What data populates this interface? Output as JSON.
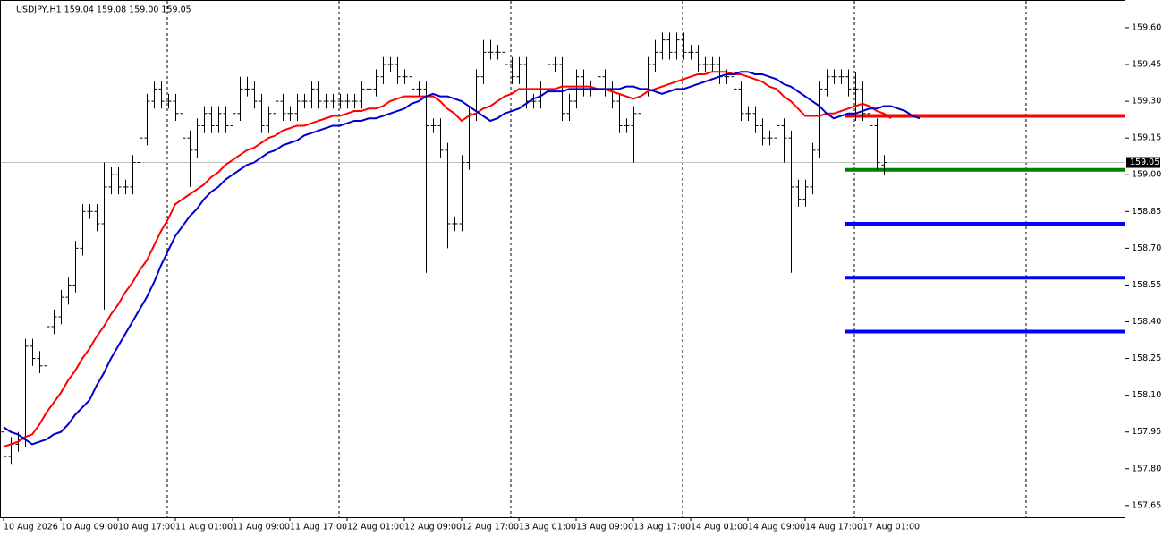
{
  "chart_data": {
    "type": "ohlc",
    "title": "USDJPY,H1  159.04 159.08 159.00 159.05",
    "color": "#000000",
    "categories": [
      "10 Aug 2026",
      null,
      null,
      null,
      null,
      null,
      null,
      null,
      "10 Aug 09:00",
      null,
      null,
      null,
      null,
      null,
      null,
      null,
      "10 Aug 17:00",
      null,
      null,
      null,
      null,
      null,
      null,
      null,
      "11 Aug 01:00",
      null,
      null,
      null,
      null,
      null,
      null,
      null,
      "11 Aug 09:00",
      null,
      null,
      null,
      null,
      null,
      null,
      null,
      "11 Aug 17:00",
      null,
      null,
      null,
      null,
      null,
      null,
      null,
      "12 Aug 01:00",
      null,
      null,
      null,
      null,
      null,
      null,
      null,
      "12 Aug 09:00",
      null,
      null,
      null,
      null,
      null,
      null,
      null,
      "12 Aug 17:00",
      null,
      null,
      null,
      null,
      null,
      null,
      null,
      "13 Aug 01:00",
      null,
      null,
      null,
      null,
      null,
      null,
      null,
      "13 Aug 09:00",
      null,
      null,
      null,
      null,
      null,
      null,
      null,
      "13 Aug 17:00",
      null,
      null,
      null,
      null,
      null,
      null,
      null,
      "14 Aug 01:00",
      null,
      null,
      null,
      null,
      null,
      null,
      null,
      "14 Aug 09:00",
      null,
      null,
      null,
      null,
      null,
      null,
      null,
      "14 Aug 17:00",
      null,
      null,
      null,
      null,
      null,
      null,
      null,
      "17 Aug 01:00",
      null,
      null,
      null,
      null,
      null,
      null,
      null,
      null
    ],
    "open": [
      157.95,
      157.85,
      157.9,
      157.92,
      158.3,
      158.25,
      158.22,
      158.38,
      158.42,
      158.5,
      158.55,
      158.7,
      158.85,
      158.85,
      158.8,
      158.95,
      159.0,
      158.95,
      158.95,
      159.05,
      159.15,
      159.3,
      159.35,
      159.3,
      159.3,
      159.25,
      159.15,
      159.1,
      159.2,
      159.25,
      159.2,
      159.25,
      159.2,
      159.25,
      159.35,
      159.35,
      159.3,
      159.2,
      159.25,
      159.3,
      159.25,
      159.25,
      159.3,
      159.3,
      159.35,
      159.3,
      159.3,
      159.3,
      159.3,
      159.3,
      159.3,
      159.35,
      159.35,
      159.4,
      159.45,
      159.45,
      159.4,
      159.4,
      159.35,
      159.35,
      159.2,
      159.2,
      159.1,
      158.8,
      158.8,
      159.05,
      159.25,
      159.4,
      159.5,
      159.5,
      159.5,
      159.45,
      159.4,
      159.45,
      159.3,
      159.3,
      159.35,
      159.45,
      159.45,
      159.25,
      159.3,
      159.4,
      159.35,
      159.35,
      159.4,
      159.35,
      159.3,
      159.2,
      159.2,
      159.25,
      159.35,
      159.45,
      159.5,
      159.55,
      159.5,
      159.55,
      159.5,
      159.5,
      159.45,
      159.45,
      159.45,
      159.4,
      159.4,
      159.35,
      159.25,
      159.25,
      159.2,
      159.15,
      159.15,
      159.2,
      159.15,
      158.95,
      158.9,
      158.95,
      159.1,
      159.35,
      159.4,
      159.4,
      159.4,
      159.35,
      159.35,
      159.25,
      159.2,
      159.04,
      null,
      null,
      null,
      null,
      null
    ],
    "high": [
      157.98,
      157.93,
      157.95,
      158.33,
      158.33,
      158.28,
      158.41,
      158.45,
      158.53,
      158.58,
      158.73,
      158.88,
      158.88,
      158.88,
      159.05,
      159.03,
      159.03,
      158.98,
      159.08,
      159.18,
      159.33,
      159.38,
      159.38,
      159.33,
      159.33,
      159.28,
      159.18,
      159.23,
      159.28,
      159.28,
      159.28,
      159.28,
      159.28,
      159.4,
      159.4,
      159.38,
      159.33,
      159.28,
      159.33,
      159.33,
      159.28,
      159.33,
      159.33,
      159.38,
      159.38,
      159.33,
      159.33,
      159.33,
      159.33,
      159.33,
      159.38,
      159.38,
      159.43,
      159.48,
      159.48,
      159.48,
      159.43,
      159.43,
      159.38,
      159.38,
      159.23,
      159.23,
      159.13,
      158.83,
      159.08,
      159.28,
      159.43,
      159.55,
      159.55,
      159.53,
      159.53,
      159.48,
      159.48,
      159.48,
      159.33,
      159.38,
      159.48,
      159.48,
      159.48,
      159.33,
      159.43,
      159.43,
      159.38,
      159.43,
      159.43,
      159.38,
      159.33,
      159.23,
      159.28,
      159.38,
      159.48,
      159.55,
      159.58,
      159.58,
      159.58,
      159.58,
      159.53,
      159.53,
      159.48,
      159.48,
      159.48,
      159.43,
      159.43,
      159.38,
      159.28,
      159.28,
      159.23,
      159.18,
      159.23,
      159.23,
      159.18,
      158.98,
      158.98,
      159.13,
      159.38,
      159.43,
      159.43,
      159.43,
      159.43,
      159.42,
      159.38,
      159.28,
      159.23,
      159.08,
      null,
      null,
      null,
      null,
      null
    ],
    "low": [
      157.7,
      157.82,
      157.87,
      157.89,
      158.22,
      158.19,
      158.19,
      158.35,
      158.39,
      158.47,
      158.52,
      158.67,
      158.82,
      158.77,
      158.45,
      158.92,
      158.92,
      158.92,
      158.92,
      159.02,
      159.12,
      159.27,
      159.27,
      159.27,
      159.22,
      159.12,
      158.95,
      159.07,
      159.17,
      159.17,
      159.17,
      159.17,
      159.17,
      159.22,
      159.32,
      159.27,
      159.17,
      159.17,
      159.22,
      159.22,
      159.22,
      159.22,
      159.27,
      159.27,
      159.27,
      159.27,
      159.27,
      159.27,
      159.27,
      159.27,
      159.27,
      159.32,
      159.32,
      159.37,
      159.42,
      159.37,
      159.37,
      159.32,
      159.32,
      158.6,
      159.17,
      159.07,
      158.7,
      158.77,
      158.77,
      159.02,
      159.22,
      159.37,
      159.47,
      159.47,
      159.42,
      159.37,
      159.37,
      159.27,
      159.27,
      159.27,
      159.32,
      159.42,
      159.22,
      159.22,
      159.27,
      159.32,
      159.32,
      159.32,
      159.32,
      159.27,
      159.17,
      159.17,
      159.05,
      159.22,
      159.32,
      159.42,
      159.47,
      159.47,
      159.47,
      159.47,
      159.47,
      159.42,
      159.42,
      159.42,
      159.37,
      159.37,
      159.32,
      159.22,
      159.22,
      159.17,
      159.12,
      159.12,
      159.12,
      159.05,
      158.6,
      158.87,
      158.87,
      158.92,
      159.07,
      159.32,
      159.37,
      159.37,
      159.32,
      159.22,
      159.22,
      159.17,
      159.02,
      159.0,
      null,
      null,
      null,
      null,
      null
    ],
    "close": [
      157.85,
      157.9,
      157.92,
      158.3,
      158.25,
      158.22,
      158.38,
      158.42,
      158.5,
      158.55,
      158.7,
      158.85,
      158.85,
      158.8,
      158.95,
      159.0,
      158.95,
      158.95,
      159.05,
      159.15,
      159.3,
      159.35,
      159.3,
      159.3,
      159.25,
      159.15,
      159.1,
      159.2,
      159.25,
      159.2,
      159.25,
      159.2,
      159.25,
      159.35,
      159.35,
      159.3,
      159.2,
      159.25,
      159.3,
      159.25,
      159.25,
      159.3,
      159.3,
      159.35,
      159.3,
      159.3,
      159.3,
      159.3,
      159.3,
      159.3,
      159.35,
      159.35,
      159.4,
      159.45,
      159.45,
      159.4,
      159.4,
      159.35,
      159.35,
      159.2,
      159.2,
      159.1,
      158.8,
      158.8,
      159.05,
      159.25,
      159.4,
      159.5,
      159.5,
      159.5,
      159.45,
      159.4,
      159.45,
      159.3,
      159.3,
      159.35,
      159.45,
      159.45,
      159.25,
      159.3,
      159.4,
      159.35,
      159.35,
      159.4,
      159.35,
      159.3,
      159.2,
      159.2,
      159.25,
      159.35,
      159.45,
      159.5,
      159.55,
      159.5,
      159.55,
      159.5,
      159.5,
      159.45,
      159.45,
      159.45,
      159.4,
      159.4,
      159.35,
      159.25,
      159.25,
      159.2,
      159.15,
      159.15,
      159.2,
      159.15,
      158.95,
      158.9,
      158.95,
      159.1,
      159.35,
      159.4,
      159.4,
      159.4,
      159.35,
      159.35,
      159.25,
      159.2,
      159.05,
      159.05,
      null,
      null,
      null,
      null,
      null
    ],
    "series": [
      {
        "color": "#ff0000",
        "values": [
          157.89,
          157.9,
          157.91,
          157.93,
          157.94,
          157.98,
          158.03,
          158.07,
          158.11,
          158.16,
          158.2,
          158.25,
          158.29,
          158.34,
          158.38,
          158.43,
          158.47,
          158.52,
          158.56,
          158.61,
          158.65,
          158.71,
          158.77,
          158.82,
          158.88,
          158.9,
          158.92,
          158.94,
          158.96,
          158.99,
          159.01,
          159.04,
          159.06,
          159.08,
          159.1,
          159.11,
          159.13,
          159.15,
          159.16,
          159.18,
          159.19,
          159.2,
          159.2,
          159.21,
          159.22,
          159.23,
          159.24,
          159.24,
          159.25,
          159.26,
          159.26,
          159.27,
          159.27,
          159.28,
          159.3,
          159.31,
          159.32,
          159.32,
          159.32,
          159.32,
          159.32,
          159.3,
          159.27,
          159.25,
          159.22,
          159.24,
          159.25,
          159.27,
          159.28,
          159.3,
          159.32,
          159.33,
          159.35,
          159.35,
          159.35,
          159.35,
          159.35,
          159.35,
          159.36,
          159.36,
          159.36,
          159.36,
          159.36,
          159.35,
          159.35,
          159.34,
          159.33,
          159.32,
          159.31,
          159.32,
          159.34,
          159.35,
          159.36,
          159.37,
          159.38,
          159.39,
          159.4,
          159.41,
          159.41,
          159.42,
          159.42,
          159.42,
          159.41,
          159.41,
          159.4,
          159.39,
          159.38,
          159.36,
          159.35,
          159.32,
          159.3,
          159.27,
          159.24,
          159.24,
          159.24,
          159.25,
          159.25,
          159.26,
          159.27,
          159.28,
          159.29,
          159.28,
          159.26,
          159.25,
          159.23,
          null,
          null,
          null,
          null
        ]
      },
      {
        "color": "#0000cc",
        "values": [
          157.97,
          157.95,
          157.94,
          157.92,
          157.9,
          157.91,
          157.92,
          157.94,
          157.95,
          157.98,
          158.02,
          158.05,
          158.08,
          158.14,
          158.19,
          158.25,
          158.3,
          158.35,
          158.4,
          158.45,
          158.5,
          158.56,
          158.63,
          158.69,
          158.75,
          158.79,
          158.83,
          158.86,
          158.9,
          158.93,
          158.95,
          158.98,
          159.0,
          159.02,
          159.04,
          159.05,
          159.07,
          159.09,
          159.1,
          159.12,
          159.13,
          159.14,
          159.16,
          159.17,
          159.18,
          159.19,
          159.2,
          159.2,
          159.21,
          159.22,
          159.22,
          159.23,
          159.23,
          159.24,
          159.25,
          159.26,
          159.27,
          159.29,
          159.3,
          159.32,
          159.33,
          159.32,
          159.32,
          159.31,
          159.3,
          159.28,
          159.26,
          159.24,
          159.22,
          159.23,
          159.25,
          159.26,
          159.27,
          159.29,
          159.31,
          159.32,
          159.34,
          159.34,
          159.34,
          159.35,
          159.35,
          159.35,
          159.35,
          159.35,
          159.35,
          159.35,
          159.35,
          159.36,
          159.36,
          159.35,
          159.35,
          159.34,
          159.33,
          159.34,
          159.35,
          159.35,
          159.36,
          159.37,
          159.38,
          159.39,
          159.4,
          159.41,
          159.41,
          159.42,
          159.42,
          159.41,
          159.41,
          159.4,
          159.39,
          159.37,
          159.36,
          159.34,
          159.32,
          159.3,
          159.28,
          159.25,
          159.23,
          159.24,
          159.25,
          159.25,
          159.26,
          159.27,
          159.27,
          159.28,
          159.28,
          159.27,
          159.26,
          159.24,
          159.23
        ]
      }
    ],
    "hlines": [
      {
        "value": 159.24,
        "color": "#ff0000"
      },
      {
        "value": 159.02,
        "color": "#008000"
      },
      {
        "value": 158.8,
        "color": "#0000ff"
      },
      {
        "value": 158.58,
        "color": "#0000ff"
      },
      {
        "value": 158.36,
        "color": "#0000ff"
      }
    ],
    "last_price": 159.05,
    "ylim": [
      157.602,
      159.713
    ],
    "yticks": [
      {
        "value": 159.6,
        "label": "159.60"
      },
      159.45,
      {
        "value": 159.3,
        "label": "159.30"
      },
      159.15,
      {
        "value": 159.0,
        "label": "159.00"
      },
      158.85,
      {
        "value": 158.7,
        "label": "158.70"
      },
      158.55,
      {
        "value": 158.4,
        "label": "158.40"
      },
      158.25,
      {
        "value": 158.1,
        "label": "158.10"
      },
      157.95,
      {
        "value": 157.8,
        "label": "157.80"
      },
      157.65
    ]
  }
}
